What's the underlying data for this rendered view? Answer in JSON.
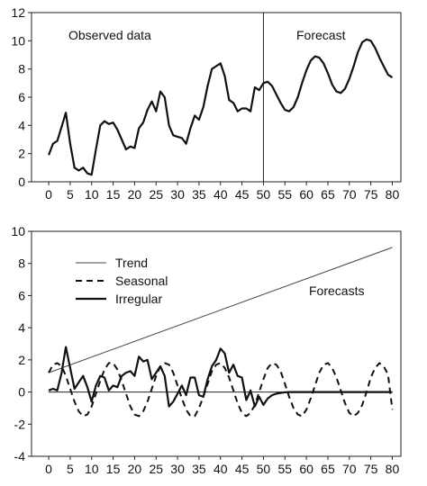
{
  "chart_data": [
    {
      "type": "line",
      "title": "",
      "xlabel": "",
      "ylabel": "",
      "xlim": [
        -4,
        82
      ],
      "ylim": [
        0,
        12
      ],
      "x_ticks": [
        0,
        5,
        10,
        15,
        20,
        25,
        30,
        35,
        40,
        45,
        50,
        55,
        60,
        65,
        70,
        75,
        80
      ],
      "y_ticks": [
        0,
        2,
        4,
        6,
        8,
        10,
        12
      ],
      "grid": false,
      "annotations": [
        "Observed data",
        "Forecast"
      ],
      "vertical_line_x": 50,
      "series": [
        {
          "x": [
            0,
            1,
            2,
            3,
            4,
            5,
            6,
            7,
            8,
            9,
            10,
            11,
            12,
            13,
            14,
            15,
            16,
            17,
            18,
            19,
            20,
            21,
            22,
            23,
            24,
            25,
            26,
            27,
            28,
            29,
            30,
            31,
            32,
            33,
            34,
            35,
            36,
            37,
            38,
            39,
            40,
            41,
            42,
            43,
            44,
            45,
            46,
            47,
            48,
            49,
            50
          ],
          "values": [
            1.9,
            2.7,
            2.9,
            3.9,
            4.9,
            2.7,
            1.0,
            0.8,
            1.0,
            0.6,
            0.5,
            2.3,
            4.0,
            4.3,
            4.1,
            4.2,
            3.7,
            3.0,
            2.3,
            2.5,
            2.4,
            3.8,
            4.2,
            5.1,
            5.7,
            5.0,
            6.4,
            6.0,
            4.0,
            3.3,
            3.2,
            3.1,
            2.7,
            3.8,
            4.7,
            4.4,
            5.3,
            6.8,
            8.0,
            8.2,
            8.4,
            7.5,
            5.8,
            5.6,
            5.0,
            5.2,
            5.2,
            5.0,
            6.7,
            6.5,
            7.0
          ]
        },
        {
          "x": [
            50,
            51,
            52,
            53,
            54,
            55,
            56,
            57,
            58,
            59,
            60,
            61,
            62,
            63,
            64,
            65,
            66,
            67,
            68,
            69,
            70,
            71,
            72,
            73,
            74,
            75,
            76,
            77,
            78,
            79,
            80
          ],
          "values": [
            7.0,
            7.1,
            6.8,
            6.2,
            5.6,
            5.1,
            5.0,
            5.3,
            6.0,
            7.0,
            7.9,
            8.6,
            8.9,
            8.8,
            8.4,
            7.7,
            6.9,
            6.4,
            6.3,
            6.6,
            7.3,
            8.2,
            9.2,
            9.9,
            10.1,
            10.0,
            9.5,
            8.8,
            8.2,
            7.6,
            7.4
          ]
        }
      ]
    },
    {
      "type": "line",
      "title": "",
      "xlabel": "",
      "ylabel": "",
      "xlim": [
        -4,
        82
      ],
      "ylim": [
        -4,
        10
      ],
      "x_ticks": [
        0,
        5,
        10,
        15,
        20,
        25,
        30,
        35,
        40,
        45,
        50,
        55,
        60,
        65,
        70,
        75,
        80
      ],
      "y_ticks": [
        -4,
        -2,
        0,
        2,
        4,
        6,
        8,
        10
      ],
      "grid": false,
      "horizontal_line_y": 0,
      "legend_placement": "top-left",
      "annotations": [
        "Forecasts"
      ],
      "series": [
        {
          "name": "Trend",
          "style": "thin",
          "x": [
            0,
            80
          ],
          "values": [
            1.2,
            9.0
          ]
        },
        {
          "name": "Seasonal",
          "style": "dashed",
          "x": [
            0,
            1,
            2,
            3,
            4,
            5,
            6,
            7,
            8,
            9,
            10,
            11,
            12,
            13,
            14,
            15,
            16,
            17,
            18,
            19,
            20,
            21,
            22,
            23,
            24,
            25,
            26,
            27,
            28,
            29,
            30,
            31,
            32,
            33,
            34,
            35,
            36,
            37,
            38,
            39,
            40,
            41,
            42,
            43,
            44,
            45,
            46,
            47,
            48,
            49,
            50,
            51,
            52,
            53,
            54,
            55,
            56,
            57,
            58,
            59,
            60,
            61,
            62,
            63,
            64,
            65,
            66,
            67,
            68,
            69,
            70,
            71,
            72,
            73,
            74,
            75,
            76,
            77,
            78,
            79,
            80
          ],
          "values": [
            1.2,
            1.7,
            1.8,
            1.6,
            1.0,
            0.2,
            -0.6,
            -1.2,
            -1.5,
            -1.4,
            -0.9,
            -0.1,
            0.7,
            1.4,
            1.8,
            1.8,
            1.4,
            0.7,
            -0.1,
            -0.9,
            -1.4,
            -1.5,
            -1.2,
            -0.6,
            0.2,
            1.0,
            1.6,
            1.8,
            1.7,
            1.2,
            0.4,
            -0.4,
            -1.1,
            -1.5,
            -1.5,
            -1.0,
            -0.3,
            0.5,
            1.3,
            1.7,
            1.8,
            1.5,
            0.9,
            0.1,
            -0.7,
            -1.3,
            -1.5,
            -1.3,
            -0.8,
            0.0,
            0.8,
            1.5,
            1.8,
            1.7,
            1.3,
            0.5,
            -0.3,
            -1.0,
            -1.4,
            -1.5,
            -1.1,
            -0.4,
            0.4,
            1.2,
            1.7,
            1.8,
            1.5,
            0.9,
            0.1,
            -0.7,
            -1.3,
            -1.5,
            -1.3,
            -0.8,
            0.0,
            0.9,
            1.5,
            1.8,
            1.6,
            1.1,
            -1.1
          ]
        },
        {
          "name": "Irregular",
          "style": "solid-thick",
          "x": [
            0,
            1,
            2,
            3,
            4,
            5,
            6,
            7,
            8,
            9,
            10,
            11,
            12,
            13,
            14,
            15,
            16,
            17,
            18,
            19,
            20,
            21,
            22,
            23,
            24,
            25,
            26,
            27,
            28,
            29,
            30,
            31,
            32,
            33,
            34,
            35,
            36,
            37,
            38,
            39,
            40,
            41,
            42,
            43,
            44,
            45,
            46,
            47,
            48,
            49,
            50,
            51,
            52,
            53,
            54,
            55,
            56,
            57,
            58,
            59,
            60,
            61,
            62,
            63,
            64,
            65,
            66,
            67,
            68,
            69,
            70,
            71,
            72,
            73,
            74,
            75,
            76,
            77,
            78,
            79,
            80
          ],
          "values": [
            0.1,
            0.2,
            0.1,
            1.2,
            2.8,
            1.5,
            0.2,
            0.6,
            1.0,
            0.3,
            -0.6,
            0.4,
            1.0,
            0.9,
            0.1,
            0.4,
            0.3,
            1.0,
            1.2,
            1.3,
            1.0,
            2.2,
            1.9,
            2.0,
            0.8,
            1.2,
            1.6,
            1.0,
            -0.9,
            -0.6,
            -0.1,
            0.4,
            -0.2,
            0.9,
            0.9,
            -0.2,
            -0.3,
            0.8,
            1.6,
            2.0,
            2.7,
            2.4,
            1.2,
            1.7,
            1.0,
            0.9,
            -0.5,
            0.1,
            -0.9,
            -0.3,
            -0.8,
            -0.4,
            -0.2,
            -0.1,
            -0.05,
            -0.02,
            0.0,
            0.0,
            0.0,
            0.0,
            0.0,
            0.0,
            0.0,
            0.0,
            0.0,
            0.0,
            0.0,
            0.0,
            0.0,
            0.0,
            0.0,
            0.0,
            0.0,
            0.0,
            0.0,
            0.0,
            0.0,
            0.0,
            0.0,
            0.0,
            0.0
          ]
        }
      ]
    }
  ]
}
